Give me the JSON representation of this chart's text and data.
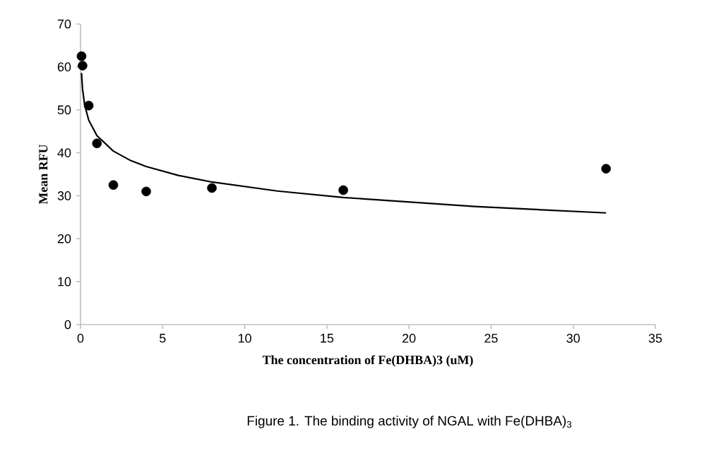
{
  "chart_data": {
    "type": "scatter",
    "xlabel": "The concentration of Fe(DHBA)3 (uM)",
    "ylabel": "Mean RFU",
    "xlim": [
      0,
      35
    ],
    "xticks": [
      0,
      5,
      10,
      15,
      20,
      25,
      30,
      35
    ],
    "ylim": [
      0,
      70
    ],
    "yticks": [
      0,
      10,
      20,
      30,
      40,
      50,
      60,
      70
    ],
    "grid": false,
    "series": [
      {
        "marker": "circle",
        "color": "#000000",
        "x": [
          0.0625,
          0.125,
          0.5,
          1,
          2,
          4,
          8,
          16,
          32
        ],
        "values": [
          62.5,
          60.3,
          51,
          42.2,
          32.5,
          31,
          31.8,
          31.3,
          36.3
        ]
      },
      {
        "type": "line",
        "marker": "none",
        "color": "#000000",
        "x": [
          0.06,
          0.125,
          0.25,
          0.5,
          1,
          2,
          3,
          4,
          6,
          8,
          12,
          16,
          24,
          32
        ],
        "values": [
          58.6,
          54.8,
          51.2,
          47.6,
          44,
          40.4,
          38.3,
          36.8,
          34.7,
          33.2,
          31.1,
          29.6,
          27.5,
          26
        ]
      }
    ],
    "annotations": [
      "Figure 1. The binding activity of NGAL with Fe(DHBA)$_{3}$"
    ]
  }
}
